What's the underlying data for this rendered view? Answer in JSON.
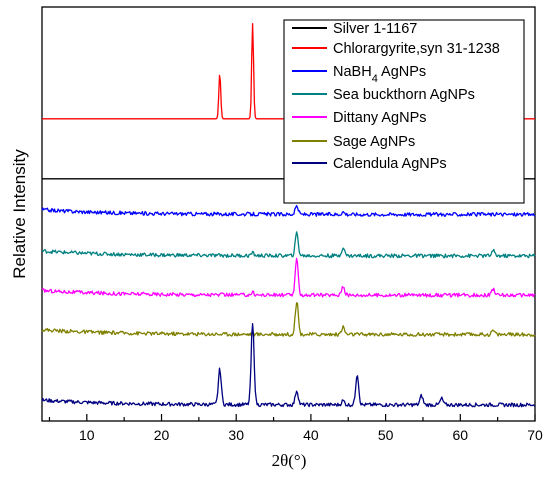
{
  "chart_data": {
    "type": "line",
    "xlabel": "2θ(°)",
    "ylabel": "Relative Intensity",
    "xlim": [
      4,
      70
    ],
    "xticks": [
      10,
      20,
      30,
      40,
      50,
      60,
      70
    ],
    "y_tick_labels": false,
    "legend_position": "top-right",
    "series": [
      {
        "name": "Silver 1-1167",
        "color": "#000000",
        "kind": "reference-stick",
        "baseline": 0.585,
        "peaks": [
          {
            "x": 38.1,
            "h": 0.1
          },
          {
            "x": 44.3,
            "h": 0.05
          },
          {
            "x": 64.4,
            "h": 0.03
          }
        ]
      },
      {
        "name": "Chlorargyrite,syn 31-1238",
        "color": "#ff0000",
        "kind": "reference-pattern",
        "baseline": 0.73,
        "peaks": [
          {
            "x": 27.8,
            "h": 0.11
          },
          {
            "x": 32.2,
            "h": 0.23
          },
          {
            "x": 46.2,
            "h": 0.1
          },
          {
            "x": 54.8,
            "h": 0.035
          },
          {
            "x": 57.5,
            "h": 0.04
          },
          {
            "x": 67.5,
            "h": 0.014
          }
        ]
      },
      {
        "name": "NaBH4 AgNPs",
        "color": "#0000ff",
        "kind": "measured",
        "baseline": 0.505,
        "peaks": [
          {
            "x": 38.1,
            "h": 0.02
          },
          {
            "x": 44.3,
            "h": 0.006
          }
        ]
      },
      {
        "name": "Sea buckthorn AgNPs",
        "color": "#008080",
        "kind": "measured",
        "baseline": 0.405,
        "peaks": [
          {
            "x": 38.1,
            "h": 0.055
          },
          {
            "x": 44.3,
            "h": 0.02
          },
          {
            "x": 64.4,
            "h": 0.012
          },
          {
            "x": 32.2,
            "h": 0.006
          }
        ]
      },
      {
        "name": "Dittany AgNPs",
        "color": "#ff00ff",
        "kind": "measured",
        "baseline": 0.31,
        "peaks": [
          {
            "x": 38.1,
            "h": 0.085
          },
          {
            "x": 44.3,
            "h": 0.022
          },
          {
            "x": 64.4,
            "h": 0.016
          },
          {
            "x": 32.2,
            "h": 0.006
          }
        ]
      },
      {
        "name": "Sage AgNPs",
        "color": "#808000",
        "kind": "measured",
        "baseline": 0.215,
        "peaks": [
          {
            "x": 38.1,
            "h": 0.08
          },
          {
            "x": 44.3,
            "h": 0.018
          },
          {
            "x": 64.4,
            "h": 0.01
          }
        ]
      },
      {
        "name": "Calendula AgNPs",
        "color": "#000080",
        "kind": "measured",
        "baseline": 0.045,
        "peaks": [
          {
            "x": 27.8,
            "h": 0.085
          },
          {
            "x": 32.2,
            "h": 0.195
          },
          {
            "x": 38.1,
            "h": 0.035
          },
          {
            "x": 46.2,
            "h": 0.075
          },
          {
            "x": 54.8,
            "h": 0.022
          },
          {
            "x": 57.5,
            "h": 0.015
          },
          {
            "x": 44.3,
            "h": 0.01
          }
        ]
      }
    ]
  },
  "legend": {
    "items": [
      {
        "text": "Silver 1-1167",
        "color": "#000000"
      },
      {
        "text": "Chlorargyrite,syn 31-1238",
        "color": "#ff0000"
      },
      {
        "text": "NaBH",
        "sub": "4",
        "suffix": " AgNPs",
        "color": "#0000ff"
      },
      {
        "text": "Sea buckthorn AgNPs",
        "color": "#008080"
      },
      {
        "text": "Dittany AgNPs",
        "color": "#ff00ff"
      },
      {
        "text": "Sage AgNPs",
        "color": "#808000"
      },
      {
        "text": "Calendula AgNPs",
        "color": "#000080"
      }
    ]
  }
}
